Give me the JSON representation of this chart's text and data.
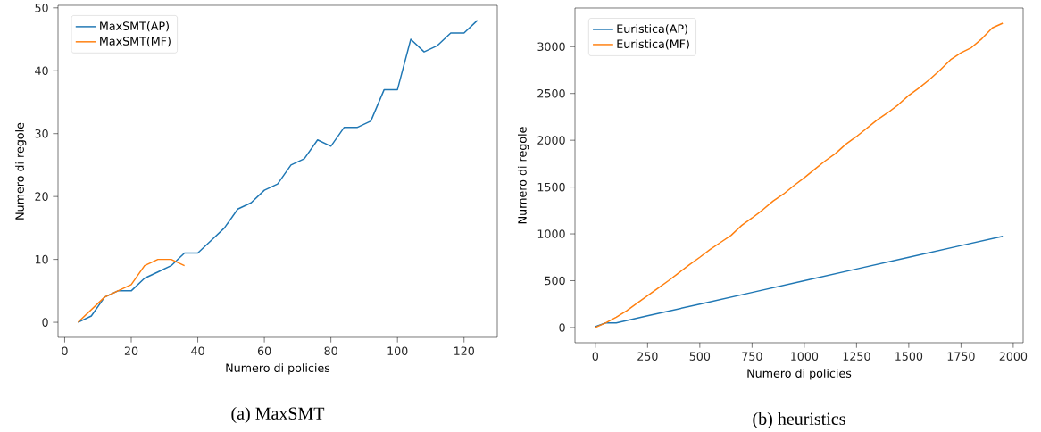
{
  "chart_data": [
    {
      "type": "line",
      "xlabel": "Numero di policies",
      "ylabel": "Numero di regole",
      "annotations": [
        "(a) MaxSMT"
      ],
      "xlim": [
        -2,
        130
      ],
      "ylim": [
        -2.4,
        50.4
      ],
      "xticks": [
        0,
        20,
        40,
        60,
        80,
        100,
        120
      ],
      "yticks": [
        0,
        10,
        20,
        30,
        40,
        50
      ],
      "legend": "top left",
      "grid": false,
      "series": [
        {
          "name": "MaxSMT(AP)",
          "color": "#1f77b4",
          "x": [
            4,
            8,
            12,
            16,
            20,
            24,
            28,
            32,
            36,
            40,
            44,
            48,
            52,
            56,
            60,
            64,
            68,
            72,
            76,
            80,
            84,
            88,
            92,
            96,
            100,
            104,
            108,
            112,
            116,
            120,
            124
          ],
          "values": [
            0,
            1,
            4,
            5,
            5,
            7,
            8,
            9,
            11,
            11,
            13,
            15,
            18,
            19,
            21,
            22,
            25,
            26,
            29,
            28,
            31,
            31,
            32,
            37,
            37,
            45,
            43,
            44,
            46,
            46,
            48
          ]
        },
        {
          "name": "MaxSMT(MF)",
          "color": "#ff7f0e",
          "x": [
            4,
            8,
            12,
            16,
            20,
            24,
            28,
            32,
            36
          ],
          "values": [
            0,
            2,
            4,
            5,
            6,
            9,
            10,
            10,
            9
          ]
        }
      ]
    },
    {
      "type": "line",
      "xlabel": "Numero di policies",
      "ylabel": "Numero di regole",
      "annotations": [
        "(b) heuristics"
      ],
      "xlim": [
        -97.5,
        2047.5
      ],
      "ylim": [
        -162.5,
        3412.5
      ],
      "xticks": [
        0,
        250,
        500,
        750,
        1000,
        1250,
        1500,
        1750,
        2000
      ],
      "yticks": [
        0,
        500,
        1000,
        1500,
        2000,
        2500,
        3000
      ],
      "legend": "top left",
      "grid": false,
      "series": [
        {
          "name": "Euristica(AP)",
          "color": "#1f77b4",
          "x": [
            0,
            50,
            100,
            250,
            500,
            750,
            1000,
            1250,
            1500,
            1750,
            1950
          ],
          "values": [
            10,
            50,
            50,
            125,
            250,
            375,
            500,
            625,
            750,
            875,
            975
          ]
        },
        {
          "name": "Euristica(MF)",
          "color": "#ff7f0e",
          "x": [
            0,
            50,
            100,
            150,
            200,
            250,
            300,
            350,
            400,
            450,
            500,
            550,
            600,
            650,
            700,
            750,
            800,
            850,
            900,
            950,
            1000,
            1050,
            1100,
            1150,
            1200,
            1250,
            1300,
            1350,
            1400,
            1450,
            1500,
            1550,
            1600,
            1650,
            1700,
            1750,
            1800,
            1850,
            1900,
            1950
          ],
          "values": [
            0,
            50,
            110,
            180,
            260,
            340,
            420,
            500,
            585,
            670,
            750,
            835,
            910,
            985,
            1090,
            1170,
            1255,
            1350,
            1425,
            1515,
            1600,
            1690,
            1780,
            1860,
            1960,
            2040,
            2130,
            2220,
            2295,
            2380,
            2480,
            2560,
            2650,
            2750,
            2860,
            2935,
            2990,
            3085,
            3200,
            3250
          ]
        }
      ]
    }
  ]
}
